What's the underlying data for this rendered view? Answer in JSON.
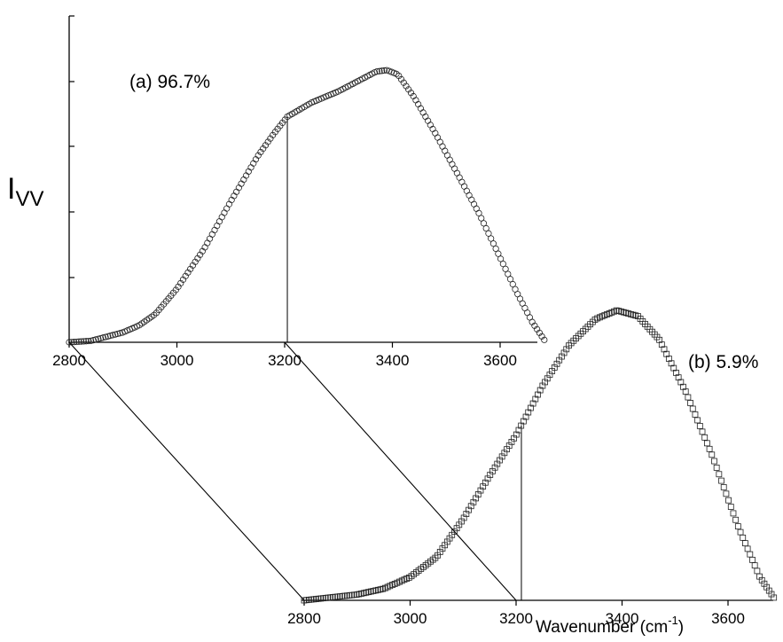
{
  "chart_data": [
    {
      "type": "scatter",
      "panel": "a",
      "label": "(a) 96.7%",
      "marker": "circle",
      "ylabel_main": "I",
      "ylabel_sub": "VV",
      "xlim": [
        2800,
        3700
      ],
      "xticks": [
        2800,
        3000,
        3200,
        3400,
        3600
      ],
      "marker_line_x": 3205,
      "curve": {
        "x": [
          2800,
          2840,
          2870,
          2900,
          2930,
          2960,
          3000,
          3050,
          3100,
          3150,
          3180,
          3205,
          3250,
          3300,
          3340,
          3370,
          3390,
          3410,
          3440,
          3480,
          3520,
          3560,
          3600,
          3630,
          3660,
          3685
        ],
        "y": [
          0,
          0.005,
          0.02,
          0.035,
          0.06,
          0.1,
          0.19,
          0.33,
          0.5,
          0.66,
          0.74,
          0.8,
          0.85,
          0.89,
          0.93,
          0.96,
          0.965,
          0.95,
          0.87,
          0.74,
          0.6,
          0.46,
          0.3,
          0.18,
          0.07,
          0
        ]
      }
    },
    {
      "type": "scatter",
      "panel": "b",
      "label": "(b) 5.9%",
      "marker": "square",
      "xlim": [
        2800,
        3700
      ],
      "xticks": [
        2800,
        3000,
        3200,
        3400,
        3600
      ],
      "xlabel": "Wavenumber (cm",
      "xlabel_sup": "-1",
      "xlabel_close": ")",
      "marker_line_x": 3210,
      "curve": {
        "x": [
          2800,
          2850,
          2900,
          2950,
          3000,
          3050,
          3100,
          3150,
          3200,
          3250,
          3300,
          3350,
          3390,
          3430,
          3470,
          3520,
          3570,
          3620,
          3660,
          3690
        ],
        "y": [
          0,
          0.01,
          0.02,
          0.04,
          0.08,
          0.15,
          0.28,
          0.43,
          0.57,
          0.74,
          0.88,
          0.97,
          1.0,
          0.98,
          0.9,
          0.72,
          0.5,
          0.25,
          0.08,
          0
        ]
      }
    }
  ]
}
